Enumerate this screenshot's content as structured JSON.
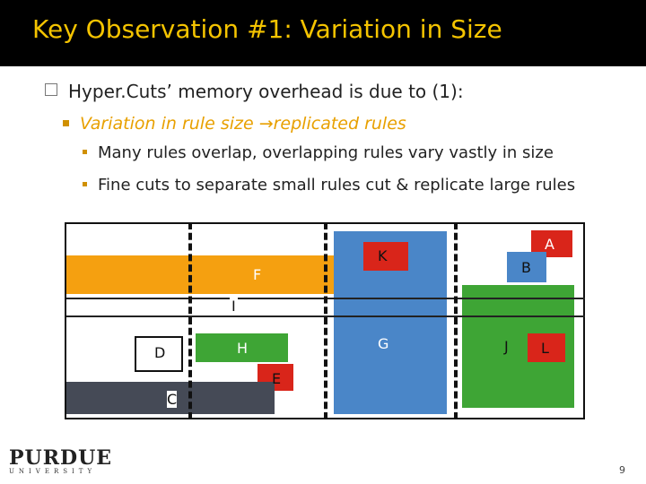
{
  "title": "Key Observation #1: Variation in Size",
  "bullets": {
    "level1": "Hyper.Cuts’ memory overhead is due to (1):",
    "level2_a": "Variation in rule size ",
    "level2_arrow": "→",
    "level2_b": "replicated rules",
    "level3": [
      "Many rules overlap, overlapping rules vary vastly in size",
      "Fine cuts to separate small rules cut & replicate large rules"
    ]
  },
  "diagram": {
    "labels": {
      "A": "A",
      "B": "B",
      "C": "C",
      "D": "D",
      "E": "E",
      "F": "F",
      "G": "G",
      "H": "H",
      "I": "I",
      "J": "J",
      "K": "K",
      "L": "L"
    },
    "colors": {
      "orange": "#f5a010",
      "blue": "#4a86c8",
      "red": "#d9251a",
      "green": "#3ea535",
      "dark": "#454a56",
      "black": "#111111"
    }
  },
  "footer": {
    "logo": "PURDUE",
    "logo_sub": "UNIVERSITY",
    "page": "9"
  }
}
